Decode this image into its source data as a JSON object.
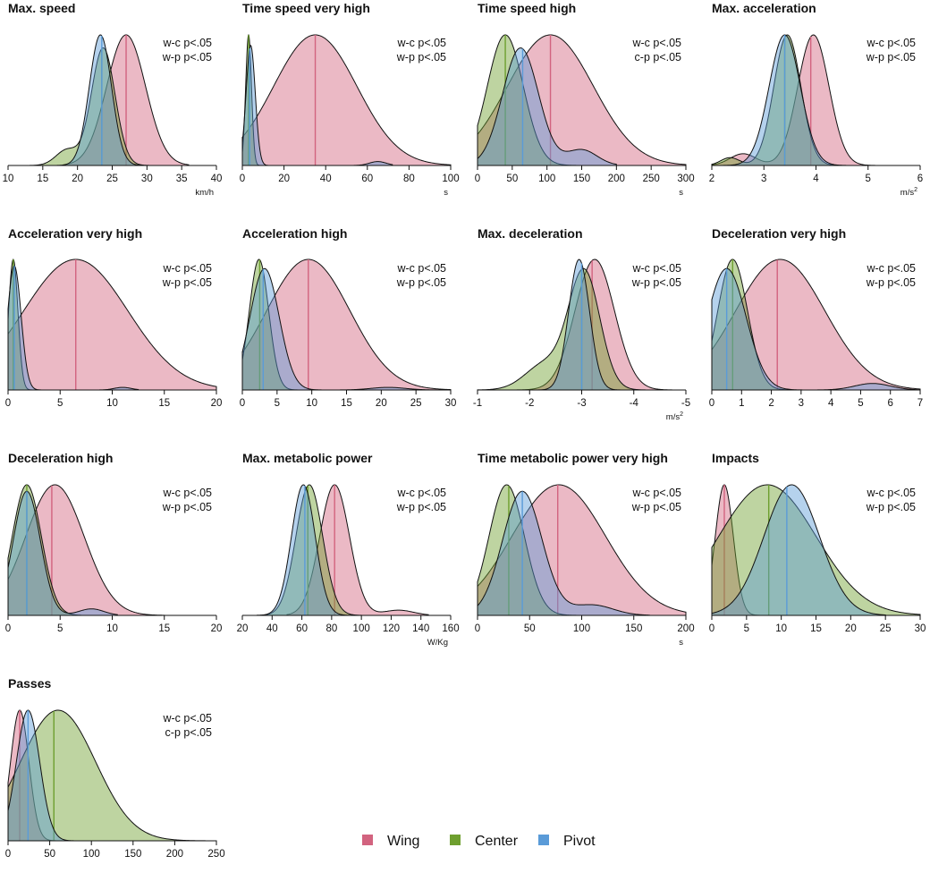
{
  "chart_data": [
    {
      "type": "area",
      "title": "Max. speed",
      "xlabel": "km/h",
      "xlabel_sup": "",
      "stats": [
        "w-c p<.05",
        "w-p p<.05"
      ],
      "xlim": [
        10,
        40
      ],
      "ticks": [
        10,
        15,
        20,
        25,
        30,
        35,
        40
      ],
      "series": [
        {
          "name": "Wing",
          "color": "#d2637f",
          "median": 27,
          "peaks": [
            {
              "m": 27,
              "sd": 2.8,
              "w": 1
            }
          ],
          "range": [
            18,
            36
          ]
        },
        {
          "name": "Center",
          "color": "#6e9f2f",
          "median": 23.5,
          "peaks": [
            {
              "m": 23.7,
              "sd": 1.7,
              "w": 0.9
            },
            {
              "m": 18.5,
              "sd": 1.6,
              "w": 0.12
            }
          ],
          "range": [
            13,
            31
          ]
        },
        {
          "name": "Pivot",
          "color": "#5a9bd8",
          "median": 23.5,
          "peaks": [
            {
              "m": 23.3,
              "sd": 1.6,
              "w": 1
            }
          ],
          "range": [
            12,
            30
          ]
        }
      ]
    },
    {
      "type": "area",
      "title": "Time speed very high",
      "xlabel": "s",
      "xlabel_sup": "",
      "stats": [
        "w-c p<.05",
        "w-p p<.05"
      ],
      "xlim": [
        0,
        100
      ],
      "ticks": [
        0,
        20,
        40,
        60,
        80,
        100
      ],
      "series": [
        {
          "name": "Wing",
          "color": "#d2637f",
          "median": 35,
          "peaks": [
            {
              "m": 35,
              "sd": 20,
              "w": 1
            }
          ],
          "range": [
            0,
            100
          ]
        },
        {
          "name": "Center",
          "color": "#6e9f2f",
          "median": 3,
          "peaks": [
            {
              "m": 3,
              "sd": 1.4,
              "w": 1
            }
          ],
          "range": [
            0,
            15
          ]
        },
        {
          "name": "Pivot",
          "color": "#5a9bd8",
          "median": 3.5,
          "peaks": [
            {
              "m": 4,
              "sd": 2.2,
              "w": 0.92
            },
            {
              "m": 65,
              "sd": 4,
              "w": 0.03
            }
          ],
          "range": [
            0,
            72
          ]
        }
      ]
    },
    {
      "type": "area",
      "title": "Time speed high",
      "xlabel": "s",
      "xlabel_sup": "",
      "stats": [
        "w-c p<.05",
        "c-p p<.05"
      ],
      "xlim": [
        0,
        300
      ],
      "ticks": [
        0,
        50,
        100,
        150,
        200,
        250,
        300
      ],
      "series": [
        {
          "name": "Wing",
          "color": "#d2637f",
          "median": 105,
          "peaks": [
            {
              "m": 105,
              "sd": 62,
              "w": 1
            }
          ],
          "range": [
            0,
            300
          ]
        },
        {
          "name": "Center",
          "color": "#6e9f2f",
          "median": 40,
          "peaks": [
            {
              "m": 40,
              "sd": 26,
              "w": 1
            }
          ],
          "range": [
            0,
            175
          ]
        },
        {
          "name": "Pivot",
          "color": "#5a9bd8",
          "median": 65,
          "peaks": [
            {
              "m": 62,
              "sd": 26,
              "w": 0.9
            },
            {
              "m": 150,
              "sd": 22,
              "w": 0.12
            }
          ],
          "range": [
            0,
            200
          ]
        }
      ]
    },
    {
      "type": "area",
      "title": "Max. acceleration",
      "xlabel": "m/s",
      "xlabel_sup": "2",
      "stats": [
        "w-c p<.05",
        "w-p p<.05"
      ],
      "xlim": [
        2,
        6
      ],
      "ticks": [
        2,
        3,
        4,
        5,
        6
      ],
      "series": [
        {
          "name": "Wing",
          "color": "#d2637f",
          "median": 3.9,
          "peaks": [
            {
              "m": 3.95,
              "sd": 0.3,
              "w": 1
            },
            {
              "m": 2.6,
              "sd": 0.25,
              "w": 0.09
            }
          ],
          "range": [
            2,
            5.2
          ]
        },
        {
          "name": "Center",
          "color": "#6e9f2f",
          "median": 3.4,
          "peaks": [
            {
              "m": 3.45,
              "sd": 0.26,
              "w": 1
            },
            {
              "m": 2.35,
              "sd": 0.18,
              "w": 0.06
            }
          ],
          "range": [
            2,
            4.8
          ]
        },
        {
          "name": "Pivot",
          "color": "#5a9bd8",
          "median": 3.4,
          "peaks": [
            {
              "m": 3.4,
              "sd": 0.3,
              "w": 1
            }
          ],
          "range": [
            2,
            4.8
          ]
        }
      ]
    },
    {
      "type": "area",
      "title": "Acceleration very high",
      "xlabel": "",
      "xlabel_sup": "",
      "stats": [
        "w-c p<.05",
        "w-p p<.05"
      ],
      "xlim": [
        0,
        20
      ],
      "ticks": [
        0,
        5,
        10,
        15,
        20
      ],
      "series": [
        {
          "name": "Wing",
          "color": "#d2637f",
          "median": 6.5,
          "peaks": [
            {
              "m": 6.5,
              "sd": 5,
              "w": 1
            }
          ],
          "range": [
            0,
            20
          ]
        },
        {
          "name": "Center",
          "color": "#6e9f2f",
          "median": 0.5,
          "peaks": [
            {
              "m": 0.5,
              "sd": 0.45,
              "w": 1
            }
          ],
          "range": [
            0,
            3
          ]
        },
        {
          "name": "Pivot",
          "color": "#5a9bd8",
          "median": 0.6,
          "peaks": [
            {
              "m": 0.6,
              "sd": 0.65,
              "w": 0.95
            },
            {
              "m": 11,
              "sd": 0.8,
              "w": 0.02
            }
          ],
          "range": [
            0,
            12.5
          ]
        }
      ]
    },
    {
      "type": "area",
      "title": "Acceleration high",
      "xlabel": "",
      "xlabel_sup": "",
      "stats": [
        "w-c p<.05",
        "w-p p<.05"
      ],
      "xlim": [
        0,
        30
      ],
      "ticks": [
        0,
        5,
        10,
        15,
        20,
        25,
        30
      ],
      "series": [
        {
          "name": "Wing",
          "color": "#d2637f",
          "median": 9.5,
          "peaks": [
            {
              "m": 9.5,
              "sd": 6,
              "w": 1
            }
          ],
          "range": [
            0,
            30
          ]
        },
        {
          "name": "Center",
          "color": "#6e9f2f",
          "median": 2.5,
          "peaks": [
            {
              "m": 2.4,
              "sd": 1.4,
              "w": 1
            }
          ],
          "range": [
            0,
            9
          ]
        },
        {
          "name": "Pivot",
          "color": "#5a9bd8",
          "median": 3,
          "peaks": [
            {
              "m": 3.2,
              "sd": 2.1,
              "w": 0.93
            },
            {
              "m": 21,
              "sd": 2.5,
              "w": 0.02
            }
          ],
          "range": [
            0,
            28
          ]
        }
      ]
    },
    {
      "type": "area",
      "title": "Max. deceleration",
      "xlabel": "m/s",
      "xlabel_sup": "2",
      "stats": [
        "w-c p<.05",
        "w-p p<.05"
      ],
      "xlim": [
        -1,
        -5
      ],
      "ticks": [
        -1,
        -2,
        -3,
        -4,
        -5
      ],
      "series": [
        {
          "name": "Wing",
          "color": "#d2637f",
          "median": -3.2,
          "peaks": [
            {
              "m": -3.25,
              "sd": 0.38,
              "w": 1
            }
          ],
          "range": [
            -1,
            -5
          ]
        },
        {
          "name": "Center",
          "color": "#6e9f2f",
          "median": -3,
          "peaks": [
            {
              "m": -3.05,
              "sd": 0.3,
              "w": 0.9
            },
            {
              "m": -2.3,
              "sd": 0.38,
              "w": 0.2
            }
          ],
          "range": [
            -1,
            -4.4
          ]
        },
        {
          "name": "Pivot",
          "color": "#5a9bd8",
          "median": -3,
          "peaks": [
            {
              "m": -2.95,
              "sd": 0.2,
              "w": 1
            }
          ],
          "range": [
            -1,
            -4.3
          ]
        }
      ]
    },
    {
      "type": "area",
      "title": "Deceleration very high",
      "xlabel": "",
      "xlabel_sup": "",
      "stats": [
        "w-c p<.05",
        "w-p p<.05"
      ],
      "xlim": [
        0,
        7
      ],
      "ticks": [
        0,
        1,
        2,
        3,
        4,
        5,
        6,
        7
      ],
      "series": [
        {
          "name": "Wing",
          "color": "#d2637f",
          "median": 2.2,
          "peaks": [
            {
              "m": 2.3,
              "sd": 1.5,
              "w": 1
            }
          ],
          "range": [
            0,
            7
          ]
        },
        {
          "name": "Center",
          "color": "#6e9f2f",
          "median": 0.7,
          "peaks": [
            {
              "m": 0.7,
              "sd": 0.5,
              "w": 1
            }
          ],
          "range": [
            0,
            4
          ]
        },
        {
          "name": "Pivot",
          "color": "#5a9bd8",
          "median": 0.5,
          "peaks": [
            {
              "m": 0.5,
              "sd": 0.65,
              "w": 0.93
            },
            {
              "m": 5.4,
              "sd": 0.6,
              "w": 0.05
            }
          ],
          "range": [
            0,
            7
          ]
        }
      ]
    },
    {
      "type": "area",
      "title": "Deceleration high",
      "xlabel": "",
      "xlabel_sup": "",
      "stats": [
        "w-c p<.05",
        "w-p p<.05"
      ],
      "xlim": [
        0,
        20
      ],
      "ticks": [
        0,
        5,
        10,
        15,
        20
      ],
      "series": [
        {
          "name": "Wing",
          "color": "#d2637f",
          "median": 4.2,
          "peaks": [
            {
              "m": 4.5,
              "sd": 2.8,
              "w": 1
            }
          ],
          "range": [
            0,
            15
          ]
        },
        {
          "name": "Center",
          "color": "#6e9f2f",
          "median": 1.8,
          "peaks": [
            {
              "m": 1.8,
              "sd": 1.4,
              "w": 1
            }
          ],
          "range": [
            0,
            7
          ]
        },
        {
          "name": "Pivot",
          "color": "#5a9bd8",
          "median": 1.8,
          "peaks": [
            {
              "m": 1.8,
              "sd": 1.3,
              "w": 0.95
            },
            {
              "m": 8,
              "sd": 1.2,
              "w": 0.05
            }
          ],
          "range": [
            0,
            10.5
          ]
        }
      ]
    },
    {
      "type": "area",
      "title": "Max. metabolic power",
      "xlabel": "W/Kg",
      "xlabel_sup": "",
      "stats": [
        "w-c p<.05",
        "w-p p<.05"
      ],
      "xlim": [
        20,
        160
      ],
      "ticks": [
        20,
        40,
        60,
        80,
        100,
        120,
        140,
        160
      ],
      "series": [
        {
          "name": "Wing",
          "color": "#d2637f",
          "median": 82,
          "peaks": [
            {
              "m": 82,
              "sd": 10,
              "w": 1
            },
            {
              "m": 125,
              "sd": 10,
              "w": 0.04
            }
          ],
          "range": [
            50,
            145
          ]
        },
        {
          "name": "Center",
          "color": "#6e9f2f",
          "median": 64,
          "peaks": [
            {
              "m": 65,
              "sd": 9,
              "w": 1
            }
          ],
          "range": [
            30,
            100
          ]
        },
        {
          "name": "Pivot",
          "color": "#5a9bd8",
          "median": 62,
          "peaks": [
            {
              "m": 61,
              "sd": 8,
              "w": 1
            }
          ],
          "range": [
            30,
            95
          ]
        }
      ]
    },
    {
      "type": "area",
      "title": "Time metabolic power very high",
      "xlabel": "s",
      "xlabel_sup": "",
      "stats": [
        "w-c p<.05",
        "w-p p<.05"
      ],
      "xlim": [
        0,
        200
      ],
      "ticks": [
        0,
        50,
        100,
        150,
        200
      ],
      "series": [
        {
          "name": "Wing",
          "color": "#d2637f",
          "median": 77,
          "peaks": [
            {
              "m": 78,
              "sd": 45,
              "w": 1
            }
          ],
          "range": [
            0,
            200
          ]
        },
        {
          "name": "Center",
          "color": "#6e9f2f",
          "median": 30,
          "peaks": [
            {
              "m": 28,
              "sd": 17,
              "w": 1
            }
          ],
          "range": [
            0,
            110
          ]
        },
        {
          "name": "Pivot",
          "color": "#5a9bd8",
          "median": 43,
          "peaks": [
            {
              "m": 43,
              "sd": 19,
              "w": 0.95
            },
            {
              "m": 110,
              "sd": 20,
              "w": 0.08
            }
          ],
          "range": [
            0,
            165
          ]
        }
      ]
    },
    {
      "type": "area",
      "title": "Impacts",
      "xlabel": "",
      "xlabel_sup": "",
      "stats": [
        "w-c p<.05",
        "w-p p<.05"
      ],
      "xlim": [
        0,
        30
      ],
      "ticks": [
        0,
        5,
        10,
        15,
        20,
        25,
        30
      ],
      "series": [
        {
          "name": "Wing",
          "color": "#d2637f",
          "median": 1.8,
          "peaks": [
            {
              "m": 1.8,
              "sd": 1.3,
              "w": 1
            }
          ],
          "range": [
            0,
            10
          ]
        },
        {
          "name": "Center",
          "color": "#6e9f2f",
          "median": 8.2,
          "peaks": [
            {
              "m": 8,
              "sd": 7,
              "w": 1
            }
          ],
          "range": [
            0,
            30
          ]
        },
        {
          "name": "Pivot",
          "color": "#5a9bd8",
          "median": 10.8,
          "peaks": [
            {
              "m": 11.5,
              "sd": 4,
              "w": 1
            }
          ],
          "range": [
            0,
            25
          ]
        }
      ]
    },
    {
      "type": "area",
      "title": "Passes",
      "xlabel": "",
      "xlabel_sup": "",
      "stats": [
        "w-c p<.05",
        "c-p p<.05"
      ],
      "xlim": [
        0,
        250
      ],
      "ticks": [
        0,
        50,
        100,
        150,
        200,
        250
      ],
      "series": [
        {
          "name": "Wing",
          "color": "#d2637f",
          "median": 14,
          "peaks": [
            {
              "m": 14,
              "sd": 11,
              "w": 1
            }
          ],
          "range": [
            0,
            70
          ]
        },
        {
          "name": "Center",
          "color": "#6e9f2f",
          "median": 55,
          "peaks": [
            {
              "m": 60,
              "sd": 45,
              "w": 1
            }
          ],
          "range": [
            0,
            250
          ]
        },
        {
          "name": "Pivot",
          "color": "#5a9bd8",
          "median": 24,
          "peaks": [
            {
              "m": 24,
              "sd": 14,
              "w": 1
            }
          ],
          "range": [
            0,
            100
          ]
        }
      ]
    }
  ],
  "legend": [
    {
      "label": "Wing",
      "color": "#d2637f"
    },
    {
      "label": "Center",
      "color": "#6e9f2f"
    },
    {
      "label": "Pivot",
      "color": "#5a9bd8"
    }
  ]
}
